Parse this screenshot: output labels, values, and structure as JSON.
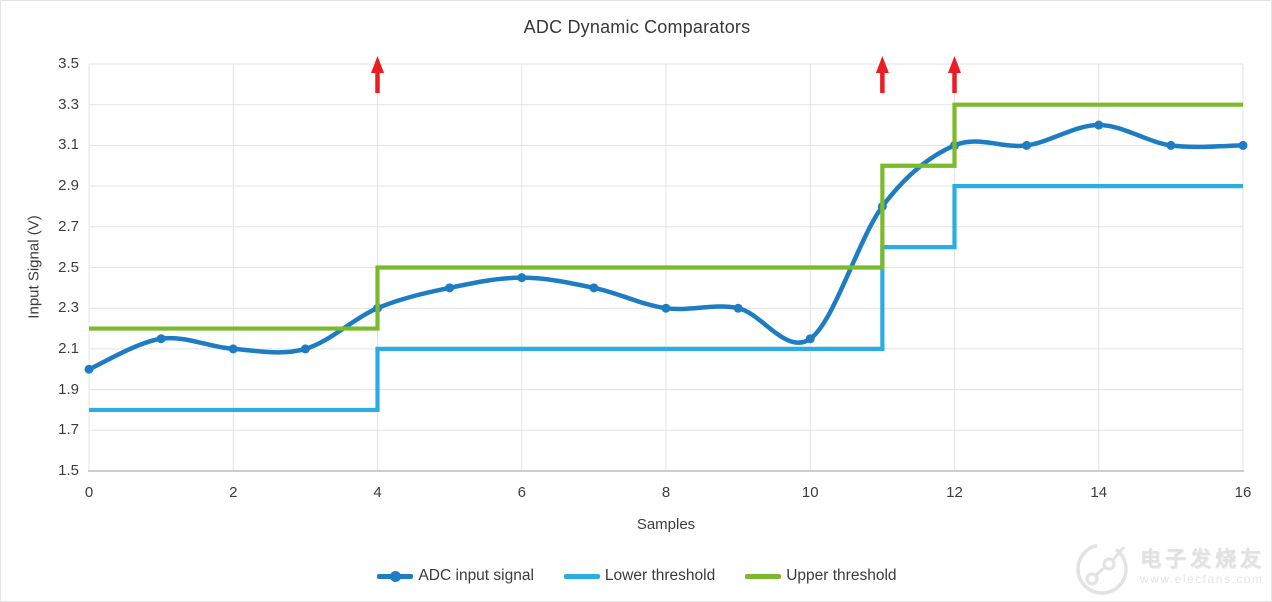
{
  "chart_data": {
    "type": "line",
    "title": "ADC Dynamic Comparators",
    "xlabel": "Samples",
    "ylabel": "Input Signal (V)",
    "xlim": [
      0,
      16
    ],
    "ylim": [
      1.5,
      3.5
    ],
    "x_tick_labels": [
      "0",
      "2",
      "4",
      "6",
      "8",
      "10",
      "12",
      "14",
      "16"
    ],
    "y_tick_labels": [
      "1.5",
      "1.7",
      "1.9",
      "2.1",
      "2.3",
      "2.5",
      "2.7",
      "2.9",
      "3.1",
      "3.3",
      "3.5"
    ],
    "grid": true,
    "legend_position": "bottom",
    "x": [
      0,
      1,
      2,
      3,
      4,
      5,
      6,
      7,
      8,
      9,
      10,
      11,
      12,
      13,
      14,
      15,
      16
    ],
    "series": [
      {
        "name": "ADC input signal",
        "type": "smooth_line_with_markers",
        "color": "#1e7dc2",
        "values": [
          2.0,
          2.15,
          2.1,
          2.1,
          2.3,
          2.4,
          2.45,
          2.4,
          2.3,
          2.3,
          2.15,
          2.8,
          3.1,
          3.1,
          3.2,
          3.1,
          3.1
        ]
      },
      {
        "name": "Lower threshold",
        "type": "step_line",
        "color": "#2aace4",
        "segments": [
          {
            "from": 0,
            "to": 4,
            "value": 1.8
          },
          {
            "from": 4,
            "to": 11,
            "value": 2.1
          },
          {
            "from": 11,
            "to": 12,
            "value": 2.6
          },
          {
            "from": 12,
            "to": 16,
            "value": 2.9
          }
        ]
      },
      {
        "name": "Upper threshold",
        "type": "step_line",
        "color": "#7aba2b",
        "segments": [
          {
            "from": 0,
            "to": 4,
            "value": 2.2
          },
          {
            "from": 4,
            "to": 11,
            "value": 2.5
          },
          {
            "from": 11,
            "to": 12,
            "value": 3.0
          },
          {
            "from": 12,
            "to": 16,
            "value": 3.3
          }
        ]
      }
    ],
    "annotations": {
      "arrows": {
        "shape": "up-arrow",
        "color": "#ec1c24",
        "x_positions": [
          4,
          11,
          12
        ]
      }
    }
  },
  "watermark": {
    "brand": "电子发烧友",
    "url": "www.elecfans.com"
  }
}
